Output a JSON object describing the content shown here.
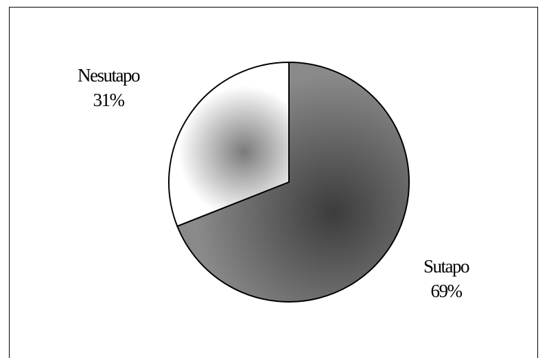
{
  "chart_data": {
    "type": "pie",
    "slices": [
      {
        "name": "Sutapo",
        "value": 69,
        "label": "69%",
        "color": "#8a8a8a",
        "center_color": "#3c3c3c"
      },
      {
        "name": "Nesutapo",
        "value": 31,
        "label": "31%",
        "color": "#ffffff",
        "center_color": "#7a7a7a"
      }
    ],
    "start_angle_deg": 0,
    "direction": "clockwise",
    "legend": "none",
    "border_color": "#000000"
  }
}
